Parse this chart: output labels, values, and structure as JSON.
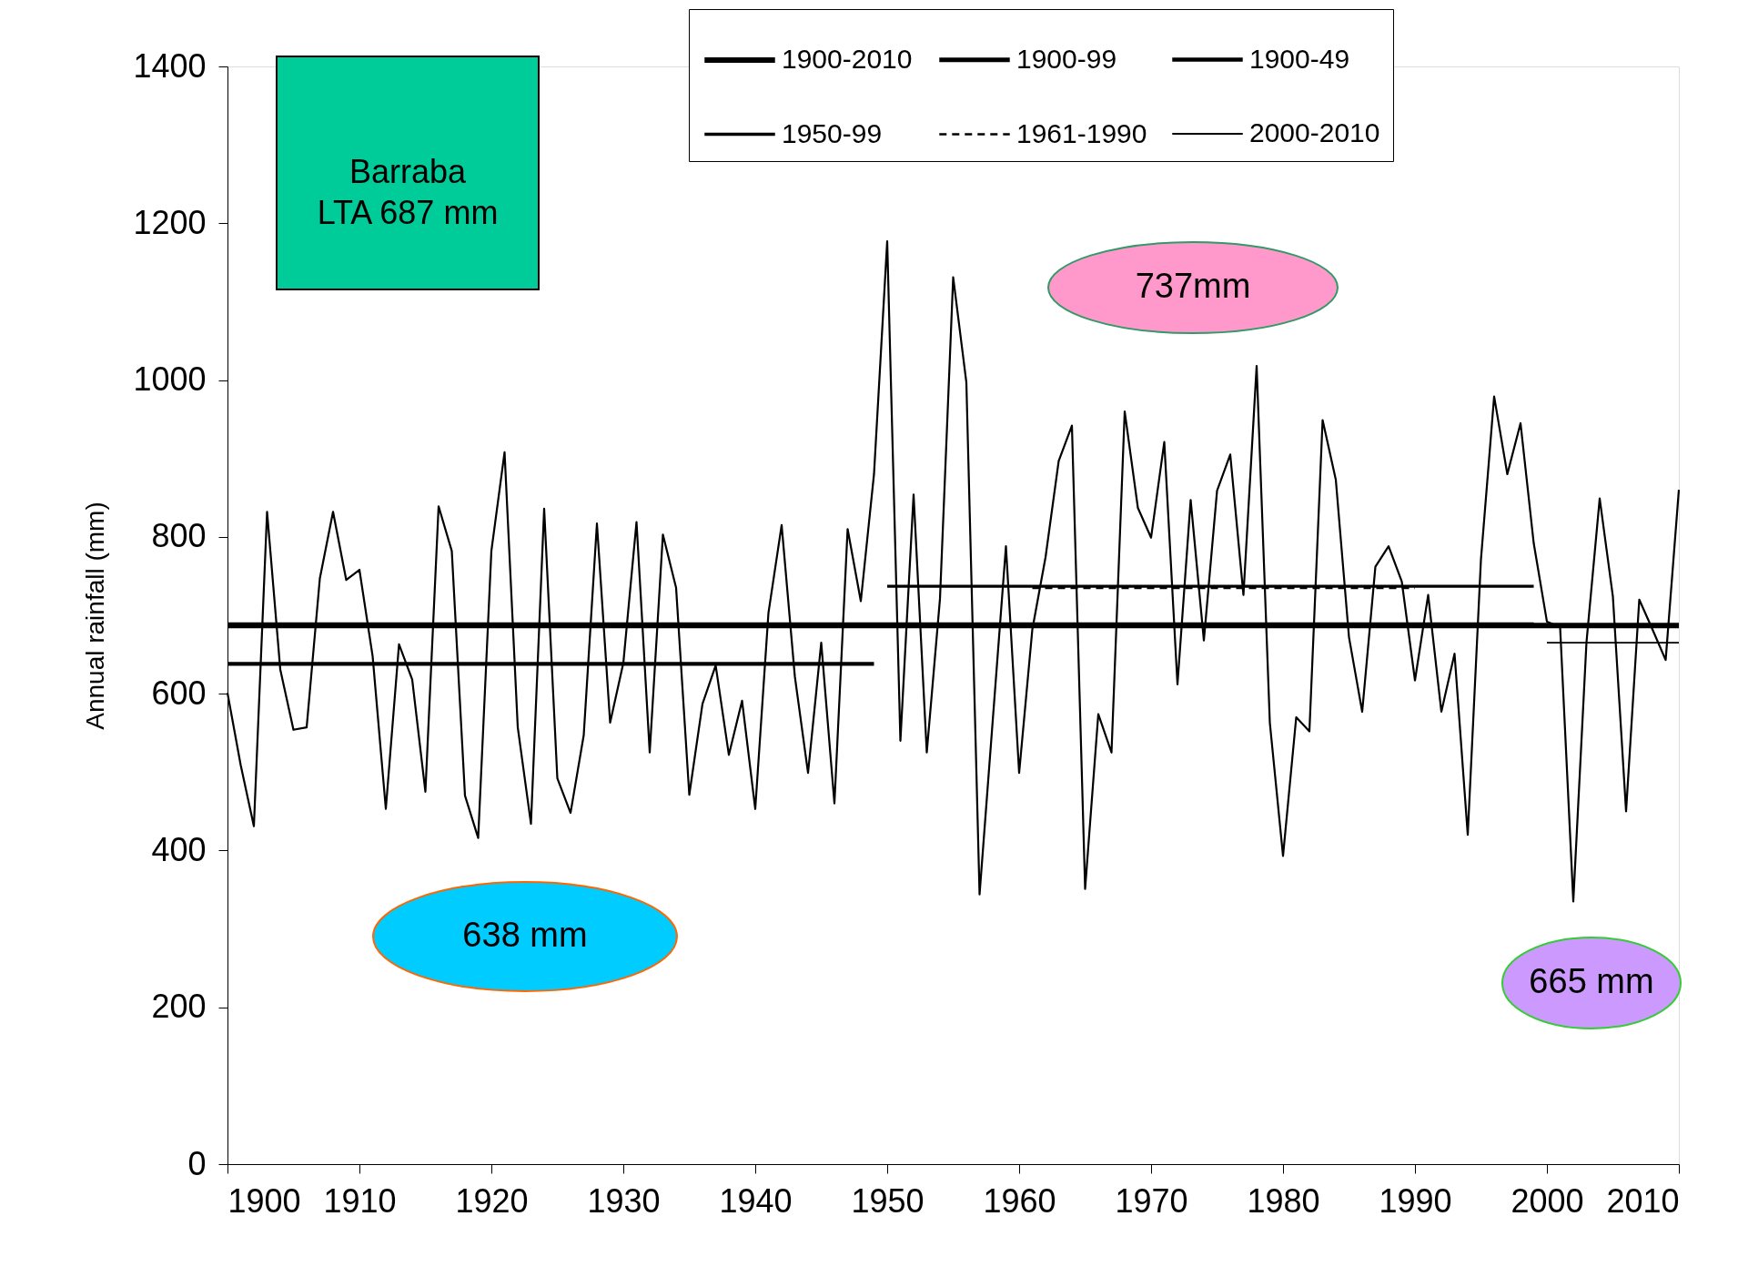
{
  "chart_data": {
    "type": "line",
    "ylabel": "Annual rainfall (mm)",
    "x": [
      1900,
      1901,
      1902,
      1903,
      1904,
      1905,
      1906,
      1907,
      1908,
      1909,
      1910,
      1911,
      1912,
      1913,
      1914,
      1915,
      1916,
      1917,
      1918,
      1919,
      1920,
      1921,
      1922,
      1923,
      1924,
      1925,
      1926,
      1927,
      1928,
      1929,
      1930,
      1931,
      1932,
      1933,
      1934,
      1935,
      1936,
      1937,
      1938,
      1939,
      1940,
      1941,
      1942,
      1943,
      1944,
      1945,
      1946,
      1947,
      1948,
      1949,
      1950,
      1951,
      1952,
      1953,
      1954,
      1955,
      1956,
      1957,
      1958,
      1959,
      1960,
      1961,
      1962,
      1963,
      1964,
      1965,
      1966,
      1967,
      1968,
      1969,
      1970,
      1971,
      1972,
      1973,
      1974,
      1975,
      1976,
      1977,
      1978,
      1979,
      1980,
      1981,
      1982,
      1983,
      1984,
      1985,
      1986,
      1987,
      1988,
      1989,
      1990,
      1991,
      1992,
      1993,
      1994,
      1995,
      1996,
      1997,
      1998,
      1999,
      2000,
      2001,
      2002,
      2003,
      2004,
      2005,
      2006,
      2007,
      2008,
      2009,
      2010
    ],
    "series": [
      {
        "color": "#000000",
        "values": [
          601,
          509,
          431,
          832,
          631,
          554,
          557,
          747,
          832,
          745,
          758,
          648,
          453,
          663,
          618,
          475,
          839,
          782,
          470,
          416,
          782,
          908,
          557,
          434,
          836,
          492,
          448,
          547,
          817,
          563,
          639,
          819,
          525,
          803,
          735,
          471,
          587,
          636,
          522,
          591,
          453,
          703,
          815,
          622,
          499,
          665,
          460,
          810,
          718,
          880,
          1177,
          540,
          854,
          525,
          721,
          1131,
          997,
          344,
          566,
          788,
          499,
          682,
          774,
          897,
          942,
          351,
          574,
          525,
          960,
          837,
          799,
          921,
          612,
          847,
          668,
          859,
          905,
          726,
          1018,
          563,
          393,
          570,
          552,
          949,
          873,
          672,
          577,
          762,
          788,
          743,
          617,
          726,
          577,
          651,
          420,
          771,
          979,
          880,
          945,
          792,
          692,
          685,
          335,
          666,
          849,
          724,
          450,
          720,
          682,
          643,
          860
        ]
      },
      {
        "name": "1900-2010",
        "color": "#000000",
        "line_style": "solid",
        "x": [
          1900,
          2010
        ],
        "values": [
          687,
          687
        ]
      },
      {
        "name": "1900-99",
        "color": "#000000",
        "line_style": "solid",
        "x": [
          1900,
          1999
        ],
        "values": [
          688,
          688
        ]
      },
      {
        "name": "1900-49",
        "color": "#000000",
        "line_style": "solid",
        "x": [
          1900,
          1949
        ],
        "values": [
          638,
          638
        ]
      },
      {
        "name": "1950-99",
        "color": "#000000",
        "line_style": "solid",
        "x": [
          1950,
          1999
        ],
        "values": [
          737,
          737
        ]
      },
      {
        "name": "1961-1990",
        "color": "#000000",
        "line_style": "dashed",
        "x": [
          1961,
          1990
        ],
        "values": [
          735,
          735
        ]
      },
      {
        "name": "2000-2010",
        "color": "#000000",
        "line_style": "solid",
        "x": [
          2000,
          2010
        ],
        "values": [
          665,
          665
        ]
      }
    ],
    "xlim": [
      1900,
      2010
    ],
    "xticks": [
      1900,
      1910,
      1920,
      1930,
      1940,
      1950,
      1960,
      1970,
      1980,
      1990,
      2000,
      2010
    ],
    "ylim": [
      0,
      1400
    ],
    "yticks": [
      0,
      200,
      400,
      600,
      800,
      1000,
      1200,
      1400
    ],
    "line_style": "solid",
    "grid": false,
    "legend": "top right",
    "marker": "none",
    "annotations": [
      "Barraba\nLTA 687 mm",
      "737mm",
      "638 mm",
      "665 mm"
    ]
  }
}
